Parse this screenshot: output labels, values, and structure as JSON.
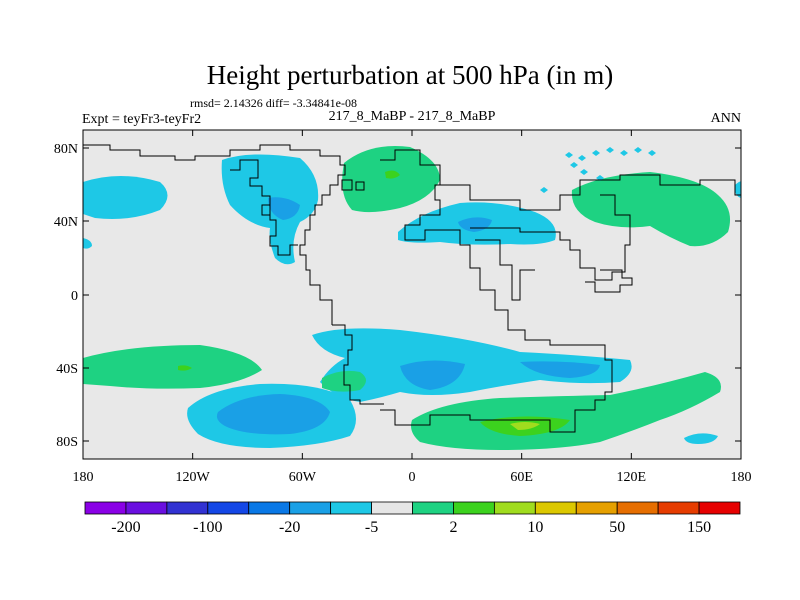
{
  "title": "Height perturbation at 500 hPa (in m)",
  "stats": "rmsd= 2.14326 diff= -3.34841e-08",
  "subtitle_left": "Expt = teyFr3-teyFr2",
  "subtitle_center": "217_8_MaBP - 217_8_MaBP",
  "subtitle_right": "ANN",
  "lat_ticks": [
    "80N",
    "40N",
    "0",
    "40S",
    "80S"
  ],
  "lon_ticks": [
    "180",
    "120W",
    "60W",
    "0",
    "60E",
    "120E",
    "180"
  ],
  "colorbar": {
    "colors": [
      "#8a00e6",
      "#6a0fe0",
      "#3232d2",
      "#1447e6",
      "#0a78e6",
      "#1aa0e6",
      "#1ec8e6",
      "#e6e6e6",
      "#1ed282",
      "#3cd21e",
      "#a0dc1e",
      "#dcc800",
      "#e6a000",
      "#e66e00",
      "#e63c00",
      "#e60000"
    ],
    "labels": [
      "-200",
      "-100",
      "-20",
      "-5",
      "2",
      "10",
      "50",
      "150"
    ]
  },
  "field_colors": {
    "background": "#e8e8e8",
    "neg_light": "#1ec8e6",
    "neg_mid": "#1aa0e6",
    "neg_dark": "#0a78e6",
    "pos_light": "#1ed282",
    "pos_dark": "#3cd21e",
    "pos_yellow": "#a0dc1e"
  }
}
